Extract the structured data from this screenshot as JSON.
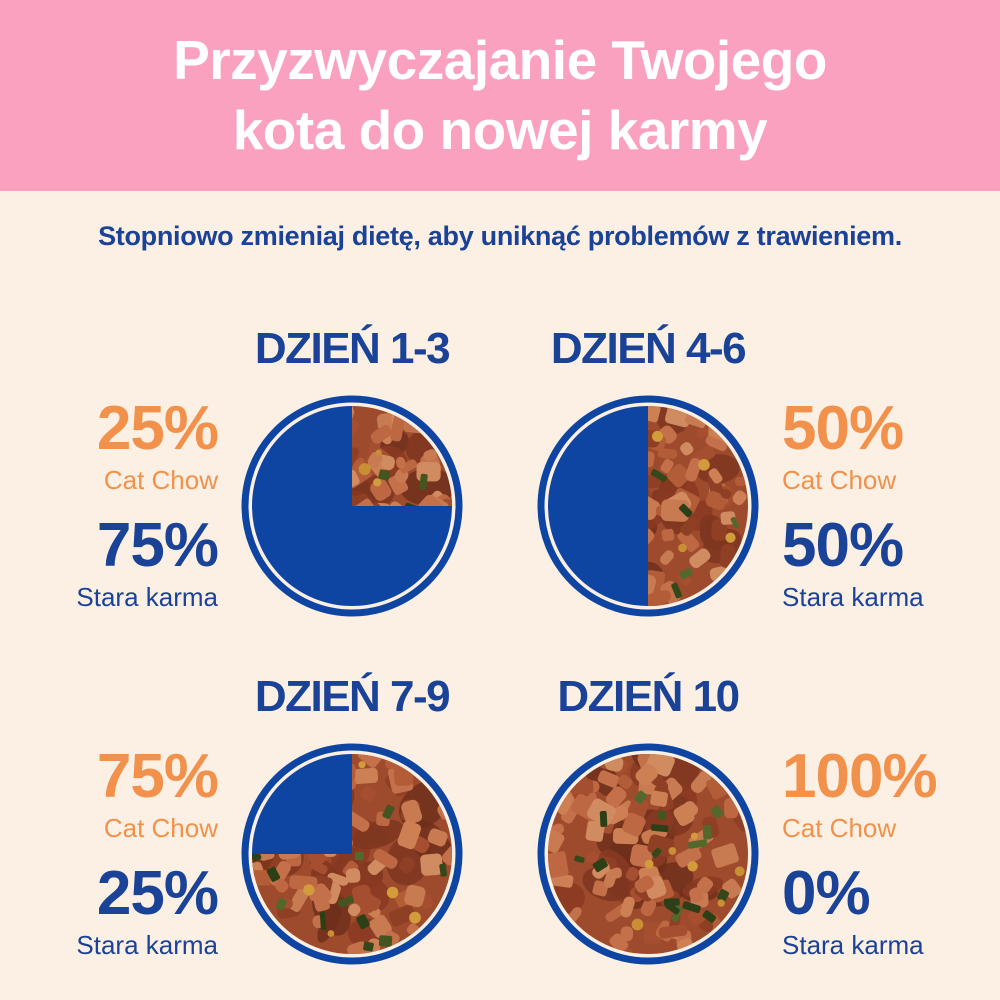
{
  "header": {
    "title_line1": "Przyzwyczajanie Twojego",
    "title_line2": "kota do nowej karmy"
  },
  "subtitle": "Stopniowo zmieniaj dietę, aby uniknąć problemów z trawieniem.",
  "colors": {
    "header_pink": "#FAA1BF",
    "background_cream": "#FBF0E3",
    "navy_text": "#1A4297",
    "navy_fill": "#0E45A2",
    "orange": "#F1914B",
    "title_white": "#FFFFFF",
    "food_base": "#9E4A2C"
  },
  "chart_data": {
    "type": "pie",
    "unit": "%",
    "legend_position": "beside-pie",
    "grid": false,
    "series_names": [
      "Cat Chow",
      "Stara karma"
    ],
    "slice_styles": {
      "cat_chow": "food-photo-wedge-clockwise-from-12",
      "stara_karma": "solid-navy"
    },
    "charts": [
      {
        "title": "DZIEŃ 1-3",
        "label_side": "left",
        "cat_chow_pct": 25,
        "stara_karma_pct": 75,
        "cat_chow_display": "25%",
        "stara_karma_display": "75%",
        "new_food_name": "Cat Chow",
        "old_food_name": "Stara karma"
      },
      {
        "title": "DZIEŃ 4-6",
        "label_side": "right",
        "cat_chow_pct": 50,
        "stara_karma_pct": 50,
        "cat_chow_display": "50%",
        "stara_karma_display": "50%",
        "new_food_name": "Cat Chow",
        "old_food_name": "Stara karma"
      },
      {
        "title": "DZIEŃ 7-9",
        "label_side": "left",
        "cat_chow_pct": 75,
        "stara_karma_pct": 25,
        "cat_chow_display": "75%",
        "stara_karma_display": "25%",
        "new_food_name": "Cat Chow",
        "old_food_name": "Stara karma"
      },
      {
        "title": "DZIEŃ 10",
        "label_side": "right",
        "cat_chow_pct": 100,
        "stara_karma_pct": 0,
        "cat_chow_display": "100%",
        "stara_karma_display": "0%",
        "new_food_name": "Cat Chow",
        "old_food_name": "Stara karma"
      }
    ]
  }
}
